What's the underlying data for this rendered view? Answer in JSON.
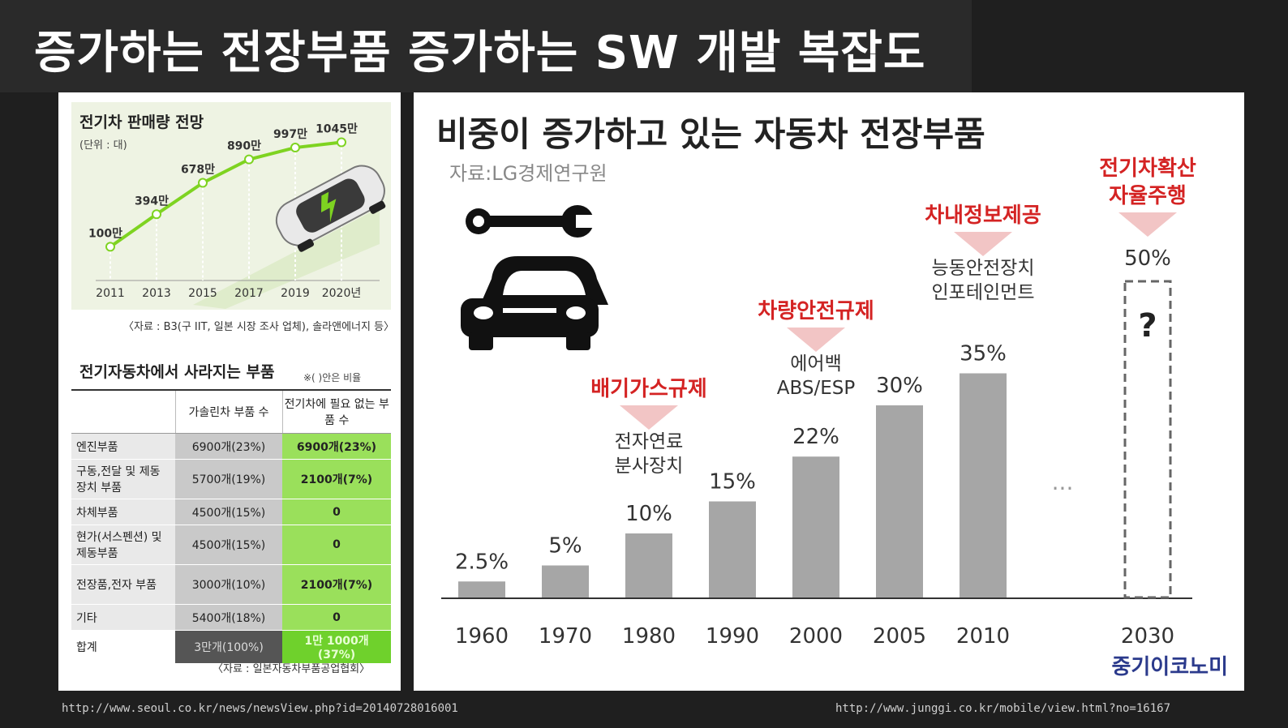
{
  "slide": {
    "title": "증가하는 전장부품 증가하는 SW 개발 복잡도",
    "source_left": "http://www.seoul.co.kr/news/newsView.php?id=20140728016001",
    "source_right": "http://www.junggi.co.kr/mobile/view.html?no=16167"
  },
  "colors": {
    "green_line": "#7ed321",
    "bar_gray": "#a6a6a6",
    "red_label": "#d42323",
    "brand_blue": "#2b3a8c"
  },
  "icons": {
    "wrench": "wrench-icon",
    "car": "car-icon",
    "ev_car": "electric-car-icon"
  },
  "chart_data": [
    {
      "type": "line",
      "title": "전기차 판매량 전망",
      "unit": "(단위 : 대)",
      "categories": [
        "2011",
        "2013",
        "2015",
        "2017",
        "2019",
        "2020년"
      ],
      "values": [
        100,
        394,
        678,
        890,
        997,
        1045
      ],
      "data_labels": [
        "100만",
        "394만",
        "678만",
        "890만",
        "997만",
        "1045만"
      ],
      "source": "〈자료 : B3(구 IIT, 일본 시장 조사 업체), 솔라앤에너지 등〉"
    },
    {
      "type": "table",
      "title": "전기자동차에서 사라지는 부품",
      "note": "※(  )안은 비율",
      "columns": [
        "",
        "가솔린차 부품 수",
        "전기차에 필요 없는 부품 수"
      ],
      "rows": [
        [
          "엔진부품",
          "6900개(23%)",
          "6900개(23%)"
        ],
        [
          "구동,전달 및 제동장치 부품",
          "5700개(19%)",
          "2100개(7%)"
        ],
        [
          "차체부품",
          "4500개(15%)",
          "0"
        ],
        [
          "현가(서스펜션) 및 제동부품",
          "4500개(15%)",
          "0"
        ],
        [
          "전장품,전자 부품",
          "3000개(10%)",
          "2100개(7%)"
        ],
        [
          "기타",
          "5400개(18%)",
          "0"
        ]
      ],
      "total": [
        "합계",
        "3만개(100%)",
        "1만 1000개(37%)"
      ],
      "source": "〈자료 : 일본자동차부품공업협회〉"
    },
    {
      "type": "bar",
      "title": "비중이 증가하고 있는 자동차 전장부품",
      "source": "자료:LG경제연구원",
      "categories": [
        "1960",
        "1970",
        "1980",
        "1990",
        "2000",
        "2005",
        "2010",
        "2030"
      ],
      "values": [
        2.5,
        5,
        10,
        15,
        22,
        30,
        35,
        50
      ],
      "data_labels": [
        "2.5%",
        "5%",
        "10%",
        "15%",
        "22%",
        "30%",
        "35%",
        "50%"
      ],
      "ylim": [
        0,
        50
      ],
      "ellipsis": "...",
      "unknown_mark": "?",
      "annotations": [
        {
          "category": "1980",
          "heading": "배기가스규제",
          "lines": [
            "전자연료",
            "분사장치"
          ]
        },
        {
          "category": "2000",
          "heading": "차량안전규제",
          "lines": [
            "에어백",
            "ABS/ESP"
          ]
        },
        {
          "category": "2010",
          "heading": "차내정보제공",
          "lines": [
            "능동안전장치",
            "인포테인먼트"
          ]
        },
        {
          "category": "2030",
          "heading": "전기차확산\n자율주행",
          "lines": []
        }
      ],
      "brand": "중기이코노미"
    }
  ]
}
